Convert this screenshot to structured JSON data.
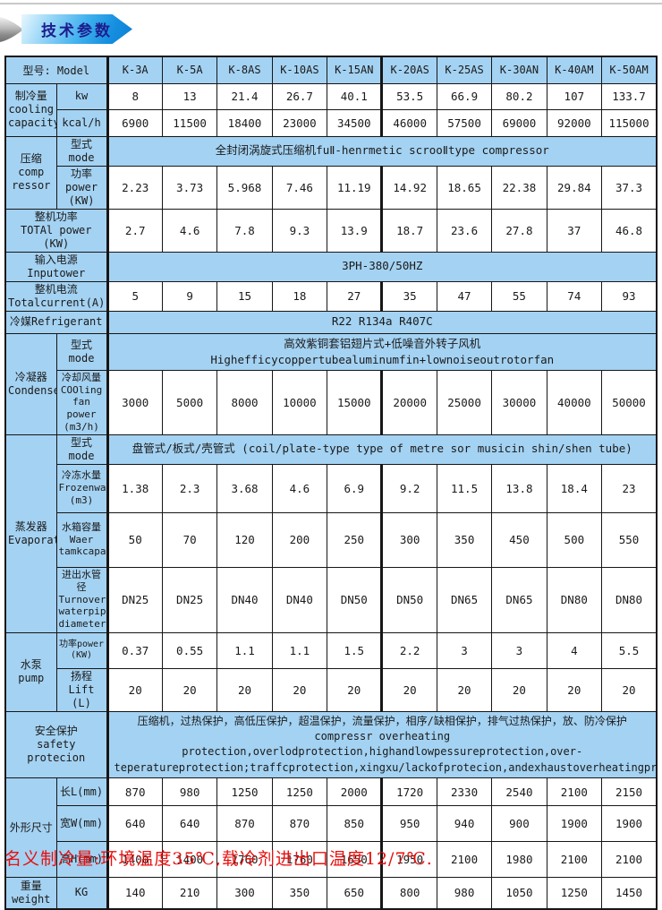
{
  "header": {
    "title": "技术参数"
  },
  "footer": {
    "note": "名义制冷量:环境温度35℃,载冷剂进出口温度12/7℃."
  },
  "table": {
    "header": {
      "label": "型号: Model",
      "models": [
        "K-3A",
        "K-5A",
        "K-8AS",
        "K-10AS",
        "K-15AN",
        "K-20AS",
        "K-25AS",
        "K-30AN",
        "K-40AM",
        "K-50AM"
      ]
    },
    "groups": {
      "cooling": "制冷量\ncooling\ncapacity",
      "compressor": "压缩\ncomp\nressor",
      "condenser": "冷凝器\nCondenser",
      "evaporator": "蒸发器\nEvaporator",
      "pump": "水泵\npump",
      "dimensions": "外形尺寸",
      "weight": "重量\nweight"
    },
    "rows": {
      "kw": {
        "label": "kw",
        "values": [
          "8",
          "13",
          "21.4",
          "26.7",
          "40.1",
          "53.5",
          "66.9",
          "80.2",
          "107",
          "133.7"
        ]
      },
      "kcal": {
        "label": "kcal/h",
        "values": [
          "6900",
          "11500",
          "18400",
          "23000",
          "34500",
          "46000",
          "57500",
          "69000",
          "92000",
          "115000"
        ]
      },
      "comp_mode": {
        "label": "型式mode",
        "text": "全封闭涡旋式压缩机fuⅡ-henrmetic scrooⅡtype compressor"
      },
      "comp_power": {
        "label": "功率\npower\n(KW)",
        "values": [
          "2.23",
          "3.73",
          "5.968",
          "7.46",
          "11.19",
          "14.92",
          "18.65",
          "22.38",
          "29.84",
          "37.3"
        ]
      },
      "total_power": {
        "label": "整机功率\nTOTAl power\n(KW)",
        "values": [
          "2.7",
          "4.6",
          "7.8",
          "9.3",
          "13.9",
          "18.7",
          "23.6",
          "27.8",
          "37",
          "46.8"
        ]
      },
      "input_power": {
        "label": "输入电源Inputower",
        "text": "3PH-380/50HZ"
      },
      "total_current": {
        "label": "整机电流\nTotalcurrent(A)",
        "values": [
          "5",
          "9",
          "15",
          "18",
          "27",
          "35",
          "47",
          "55",
          "74",
          "93"
        ]
      },
      "refrigerant": {
        "label": "冷媒Refrigerant",
        "text": "R22 R134a R407C"
      },
      "cond_mode": {
        "label": "型式mode",
        "text": "高效紫铜套铝翅片式+低噪音外转子风机Highefficycoppertubealuminumfin+lownoiseoutrotorfan"
      },
      "cooling_fan": {
        "label": "冷却风量\nCOOling\nfan power\n(m3/h)",
        "values": [
          "3000",
          "5000",
          "8000",
          "10000",
          "15000",
          "20000",
          "25000",
          "30000",
          "40000",
          "50000"
        ]
      },
      "evap_mode": {
        "label": "型式mode",
        "text": "盘管式/板式/壳管式 (coil/plate-type type of metre sor musicin shin/shen tube)"
      },
      "frozen_water": {
        "label": "冷冻水量\nFrozenwater\n(m3)",
        "values": [
          "1.38",
          "2.3",
          "3.68",
          "4.6",
          "6.9",
          "9.2",
          "11.5",
          "13.8",
          "18.4",
          "23"
        ]
      },
      "tank_capacity": {
        "label": "水箱容量\nWaer\ntamkcapacity(L)",
        "values": [
          "50",
          "70",
          "120",
          "200",
          "250",
          "300",
          "350",
          "450",
          "500",
          "550"
        ]
      },
      "pipe_diameter": {
        "label": "进出水管径\nTurnover\nwaterpipe\ndiameter",
        "values": [
          "DN25",
          "DN25",
          "DN40",
          "DN40",
          "DN50",
          "DN50",
          "DN65",
          "DN65",
          "DN80",
          "DN80"
        ]
      },
      "pump_power": {
        "label": "功率power\n(KW)",
        "values": [
          "0.37",
          "0.55",
          "1.1",
          "1.1",
          "1.5",
          "2.2",
          "3",
          "3",
          "4",
          "5.5"
        ]
      },
      "pump_lift": {
        "label": "扬程Lift\n(L)",
        "values": [
          "20",
          "20",
          "20",
          "20",
          "20",
          "20",
          "20",
          "20",
          "20",
          "20"
        ]
      },
      "safety": {
        "label": "安全保护\nsafety protecion",
        "text": "压缩机，过热保护，高低压保护，超温保护，流量保护，相序/缺相保护，排气过热保护，放、防冷保护\ncompressr overheating protection,overlodprotection,highandlowpessureprotection,over-teperatureprotection;traffcprotection,xingxu/lackofprotecion,andexhaustoverheatingproteion,frostprotection"
      },
      "length": {
        "label": "长L(mm)",
        "values": [
          "870",
          "980",
          "1250",
          "1250",
          "2000",
          "1720",
          "2330",
          "2540",
          "2100",
          "2150"
        ]
      },
      "width": {
        "label": "宽W(mm)",
        "values": [
          "640",
          "640",
          "870",
          "870",
          "850",
          "950",
          "940",
          "900",
          "1900",
          "1900"
        ]
      },
      "height": {
        "label": "高H(mm)",
        "values": [
          "1400",
          "1400",
          "1760",
          "1760",
          "1650",
          "1950",
          "2100",
          "1980",
          "2100",
          "2100"
        ]
      },
      "weight_kg": {
        "label": "KG",
        "values": [
          "140",
          "210",
          "300",
          "350",
          "650",
          "800",
          "980",
          "1050",
          "1250",
          "1450"
        ]
      }
    }
  }
}
